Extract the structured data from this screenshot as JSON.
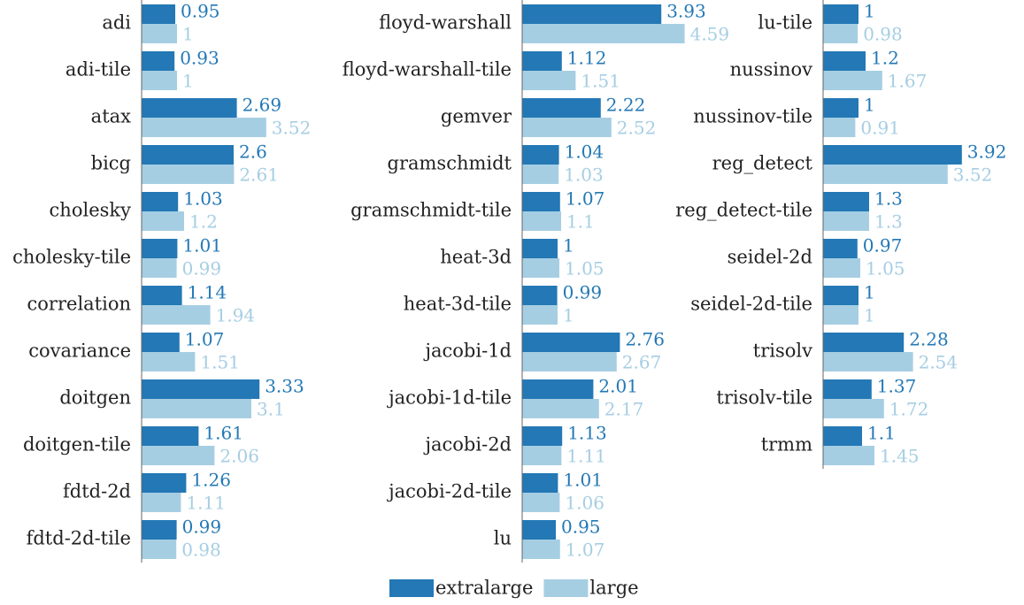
{
  "chart_data": {
    "type": "bar",
    "orientation": "horizontal",
    "xlim": [
      0,
      4
    ],
    "series": [
      {
        "name": "extralarge",
        "color": "#2378b5"
      },
      {
        "name": "large",
        "color": "#a6cee3"
      }
    ],
    "panels": [
      {
        "categories": [
          "adi",
          "adi-tile",
          "atax",
          "bicg",
          "cholesky",
          "cholesky-tile",
          "correlation",
          "covariance",
          "doitgen",
          "doitgen-tile",
          "fdtd-2d",
          "fdtd-2d-tile"
        ],
        "values": [
          [
            0.95,
            0.93,
            2.69,
            2.6,
            1.03,
            1.01,
            1.14,
            1.07,
            3.33,
            1.61,
            1.26,
            0.99
          ],
          [
            1,
            1,
            3.52,
            2.61,
            1.2,
            0.99,
            1.94,
            1.51,
            3.1,
            2.06,
            1.11,
            0.98
          ]
        ]
      },
      {
        "categories": [
          "floyd-warshall",
          "floyd-warshall-tile",
          "gemver",
          "gramschmidt",
          "gramschmidt-tile",
          "heat-3d",
          "heat-3d-tile",
          "jacobi-1d",
          "jacobi-1d-tile",
          "jacobi-2d",
          "jacobi-2d-tile",
          "lu"
        ],
        "values": [
          [
            3.93,
            1.12,
            2.22,
            1.04,
            1.07,
            1,
            0.99,
            2.76,
            2.01,
            1.13,
            1.01,
            0.95
          ],
          [
            4.59,
            1.51,
            2.52,
            1.03,
            1.1,
            1.05,
            1,
            2.67,
            2.17,
            1.11,
            1.06,
            1.07
          ]
        ]
      },
      {
        "categories": [
          "lu-tile",
          "nussinov",
          "nussinov-tile",
          "reg_detect",
          "reg_detect-tile",
          "seidel-2d",
          "seidel-2d-tile",
          "trisolv",
          "trisolv-tile",
          "trmm"
        ],
        "values": [
          [
            1,
            1.2,
            1,
            3.92,
            1.3,
            0.97,
            1,
            2.28,
            1.37,
            1.1
          ],
          [
            0.98,
            1.67,
            0.91,
            3.52,
            1.3,
            1.05,
            1,
            2.54,
            1.72,
            1.45
          ]
        ]
      }
    ]
  }
}
